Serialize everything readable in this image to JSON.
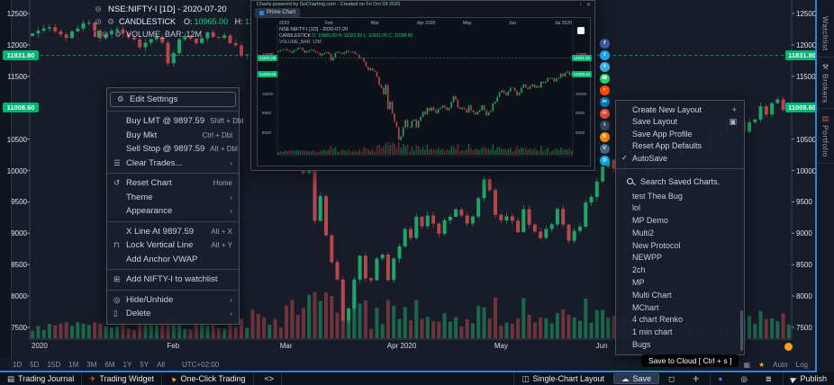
{
  "legend": {
    "symbol": "NSE:NIFTY-I [1D] - 2020-07-20",
    "study": "CANDLESTICK",
    "ohlc": [
      {
        "k": "O:",
        "v": "10965.00"
      },
      {
        "k": "H:",
        "v": "11022.65"
      },
      {
        "k": "L:",
        "v": "10921.00"
      },
      {
        "k": "C:",
        "v": "11008.60"
      }
    ],
    "volume": "VOLUME_BAR: 12M"
  },
  "chart": {
    "closes": [
      12182,
      12226,
      12261,
      12282,
      12216,
      12168,
      12110,
      12215,
      12260,
      12344,
      12355,
      12224,
      12106,
      12170,
      12224,
      12248,
      12180,
      12119,
      12086,
      11962,
      12035,
      12090,
      12129,
      12035,
      11708,
      11869,
      12089,
      12137,
      12098,
      12031,
      12107,
      12201,
      12126,
      12113,
      12152,
      12026,
      11992,
      11829,
      11845,
      11633,
      11386,
      11201,
      11303,
      11202,
      11132,
      10851,
      10458,
      10300,
      9955,
      10458,
      9197,
      9590,
      8967,
      8541,
      8263,
      7610,
      7801,
      8263,
      8641,
      8281,
      8253,
      8598,
      8660,
      8254,
      8597,
      8792,
      9067,
      8926,
      9262,
      9112,
      9282,
      9154,
      8993,
      9206,
      9262,
      9380,
      9282,
      9154,
      9266,
      9559,
      9859,
      9687,
      9293,
      9205,
      9270,
      9199,
      9017,
      9383,
      9137,
      9027,
      8925,
      9067,
      9142,
      9387,
      9136,
      8879,
      9039,
      9106,
      9490,
      9580,
      9827,
      10062,
      10167,
      10029,
      9914,
      10116,
      10303,
      10288,
      10142,
      9902,
      10046,
      10305,
      10471,
      10312,
      10244,
      10383,
      10471,
      10305,
      10383,
      10312,
      10607,
      10551,
      10608,
      10800,
      10763,
      10799,
      10618,
      10768,
      10813,
      11022,
      10891,
      11073,
      11132,
      10965,
      11009
    ],
    "y_ticks": [
      "12500",
      "12000",
      "11500",
      "11000",
      "10500",
      "10000",
      "9500",
      "9000",
      "8500",
      "8000",
      "7500"
    ],
    "x_labels": [
      {
        "label": "2020",
        "i": 0
      },
      {
        "label": "Feb",
        "i": 24
      },
      {
        "label": "Mar",
        "i": 44
      },
      {
        "label": "Apr 2020",
        "i": 63
      },
      {
        "label": "May",
        "i": 82
      },
      {
        "label": "Jun",
        "i": 100
      }
    ],
    "price_tags": [
      {
        "value": "11831.80",
        "price": 11831.8,
        "dashed": true
      },
      {
        "value": "11008.60",
        "price": 11008.6,
        "dashed": false
      }
    ],
    "colors": {
      "up": "#1fa567",
      "down": "#b5484d",
      "dashed_line": "#0fae6e",
      "tag_bg": "#00b473"
    }
  },
  "context_menu": {
    "items": [
      {
        "icon": "gear",
        "label": "Edit Settings",
        "right": "",
        "hl": true
      },
      {
        "sep": true
      },
      {
        "icon": "",
        "label": "Buy LMT @ 9897.59",
        "right": "Shift + Dbl"
      },
      {
        "icon": "",
        "label": "Buy Mkt",
        "right": "Ctrl + Dbl"
      },
      {
        "icon": "",
        "label": "Sell Stop @ 9897.59",
        "right": "Alt + Dbl"
      },
      {
        "icon": "sliders",
        "label": "Clear Trades...",
        "right": "›"
      },
      {
        "sep": true
      },
      {
        "icon": "reset",
        "label": "Reset Chart",
        "right": "Home"
      },
      {
        "icon": "",
        "label": "Theme",
        "right": "›"
      },
      {
        "icon": "",
        "label": "Appearance",
        "right": "›"
      },
      {
        "sep": true
      },
      {
        "icon": "",
        "label": "X Line At 9897.59",
        "right": "Alt + X"
      },
      {
        "icon": "lock",
        "label": "Lock Vertical Line",
        "right": "Alt + Y"
      },
      {
        "icon": "",
        "label": "Add Anchor VWAP",
        "right": ""
      },
      {
        "sep": true
      },
      {
        "icon": "watchlist-add",
        "label": "Add NIFTY-I to watchlist",
        "right": ""
      },
      {
        "sep": true
      },
      {
        "icon": "eye",
        "label": "Hide/Unhide",
        "right": "›"
      },
      {
        "icon": "trash",
        "label": "Delete",
        "right": "›"
      }
    ]
  },
  "layout_menu": {
    "items": [
      {
        "icon": "",
        "label": "Create New Layout",
        "right_icon": "plus"
      },
      {
        "icon": "",
        "label": "Save Layout",
        "right_icon": "save"
      },
      {
        "icon": "",
        "label": "Save App Profile",
        "right_icon": ""
      },
      {
        "icon": "",
        "label": "Reset App Defaults",
        "right_icon": ""
      },
      {
        "icon": "check",
        "label": "AutoSave",
        "right_icon": ""
      }
    ],
    "search_label": "Search Saved Charts.",
    "saved_charts": [
      "test Thea Bug",
      "lol",
      "MP Demo",
      "Multi2",
      "New Protocol",
      "NEWPP",
      "2ch",
      "MP",
      "Multi Chart",
      "MChart",
      "4 chart Renko",
      "1 min chart",
      "Bugs"
    ]
  },
  "tooltip": "Save to Cloud [ Ctrl + s ]",
  "popup": {
    "watermark": "Charts powered by GoCharting.com - Created on Fri Oct 09 2020",
    "tab": "Prime Chart",
    "dates": [
      "2020",
      "Feb",
      "Mar",
      "Apr 2020",
      "May",
      "Jun",
      "Jul 2020"
    ],
    "symbol": "NSE:NIFTY-I [1D] - 2020-07-20",
    "study": "CANDLESTICK",
    "ohlc": "O: 10965.00 H: 11022.65 L: 10921.00 C: 11008.60",
    "volume": "VOLUME_BAR: 12M",
    "y_ticks": [
      "12000",
      "11000",
      "10000",
      "9000",
      "8000"
    ],
    "tags": [
      {
        "value": "11831.80",
        "price": 11831.8
      },
      {
        "value": "11008.60",
        "price": 11008.6
      }
    ]
  },
  "social": [
    {
      "name": "facebook",
      "color": "#3b5998",
      "glyph": "f"
    },
    {
      "name": "twitter",
      "color": "#1da1f2",
      "glyph": "t"
    },
    {
      "name": "telegram",
      "color": "#37aee2",
      "glyph": "✈"
    },
    {
      "name": "whatsapp",
      "color": "#25d366",
      "glyph": "☎"
    },
    {
      "name": "reddit",
      "color": "#ff4500",
      "glyph": "r"
    },
    {
      "name": "linkedin",
      "color": "#0077b5",
      "glyph": "in"
    },
    {
      "name": "gmail",
      "color": "#dd4b39",
      "glyph": "✉"
    },
    {
      "name": "tumblr",
      "color": "#35465c",
      "glyph": "t"
    },
    {
      "name": "blogger",
      "color": "#ff8800",
      "glyph": "B"
    },
    {
      "name": "vk",
      "color": "#45668e",
      "glyph": "V"
    },
    {
      "name": "mail",
      "color": "#00aced",
      "glyph": "@"
    }
  ],
  "timebar": {
    "timeframes": [
      "1D",
      "5D",
      "15D",
      "1M",
      "3M",
      "6M",
      "1Y",
      "5Y",
      "All"
    ],
    "utc": "UTC+02:00",
    "auto": "Auto",
    "log": "Log"
  },
  "bottom_bar": {
    "left": [
      {
        "icon": "journal",
        "label": "Trading Journal"
      },
      {
        "icon": "rocket",
        "label": "Trading Widget"
      },
      {
        "icon": "pointer",
        "label": "One-Click Trading"
      },
      {
        "icon": "",
        "label": "<>"
      }
    ],
    "right": [
      {
        "icon": "layout",
        "label": "Single-Chart Layout",
        "div": true
      },
      {
        "icon": "cloud",
        "label": "Save",
        "hl": true
      },
      {
        "icon": "frame",
        "label": ""
      },
      {
        "icon": "expand",
        "label": ""
      },
      {
        "icon": "camera",
        "label": "",
        "div": true
      },
      {
        "icon": "target",
        "label": ""
      },
      {
        "icon": "bank",
        "label": ""
      },
      {
        "icon": "publish",
        "label": "Publish",
        "div": true
      }
    ]
  },
  "right_tabs": [
    {
      "icon": "",
      "label": "Watchlist"
    },
    {
      "icon": "wrench",
      "label": "Brokers"
    },
    {
      "icon": "portfolio",
      "label": "Portfolio"
    }
  ]
}
